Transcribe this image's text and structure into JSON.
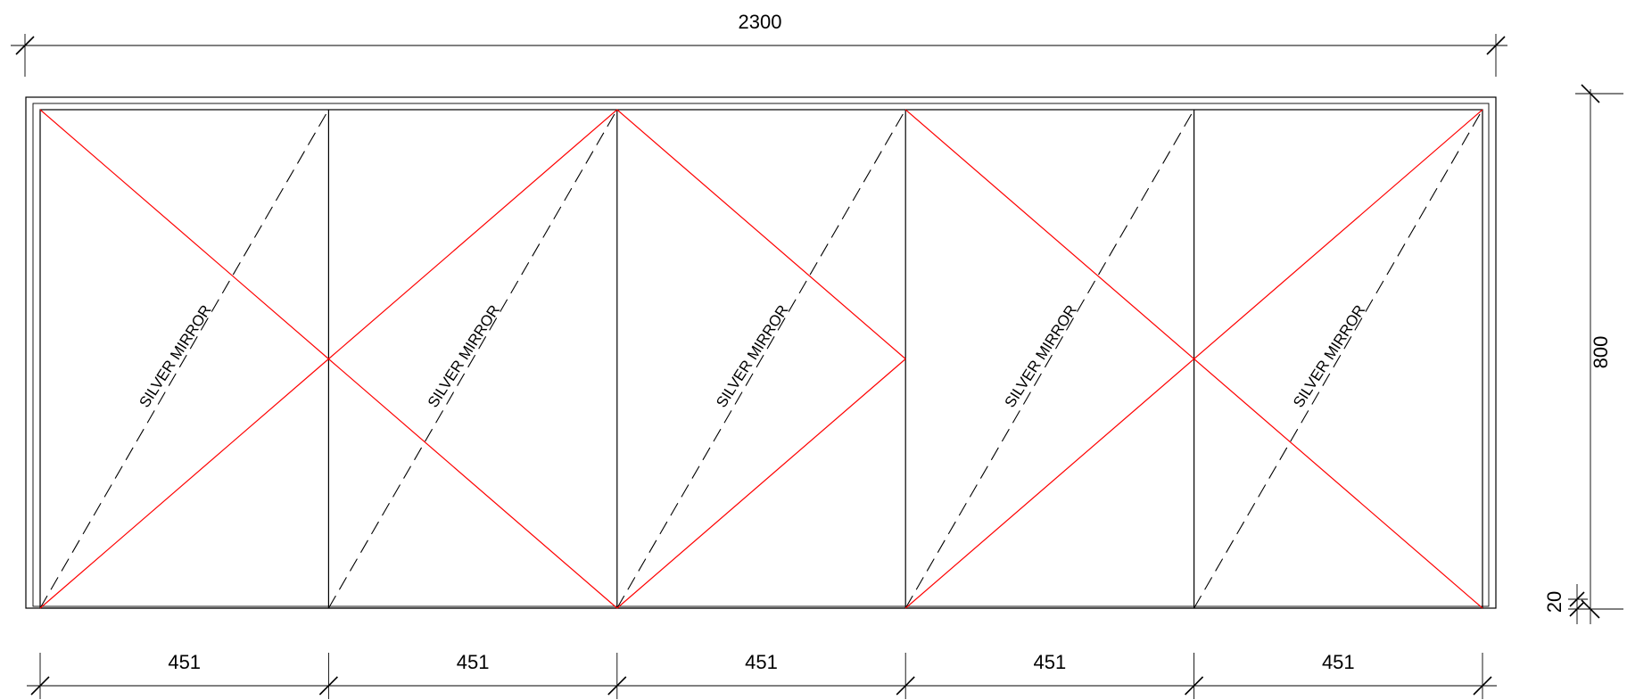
{
  "dimensions": {
    "overall_width": "2300",
    "overall_height": "800",
    "bottom_gap": "20",
    "panel_widths": [
      "451",
      "451",
      "451",
      "451",
      "451"
    ]
  },
  "panels": [
    {
      "label": "SILVER MIRROR"
    },
    {
      "label": "SILVER MIRROR"
    },
    {
      "label": "SILVER MIRROR"
    },
    {
      "label": "SILVER MIRROR"
    },
    {
      "label": "SILVER MIRROR"
    }
  ],
  "colors": {
    "opening_lines": "#ff0000",
    "linework": "#000000"
  }
}
